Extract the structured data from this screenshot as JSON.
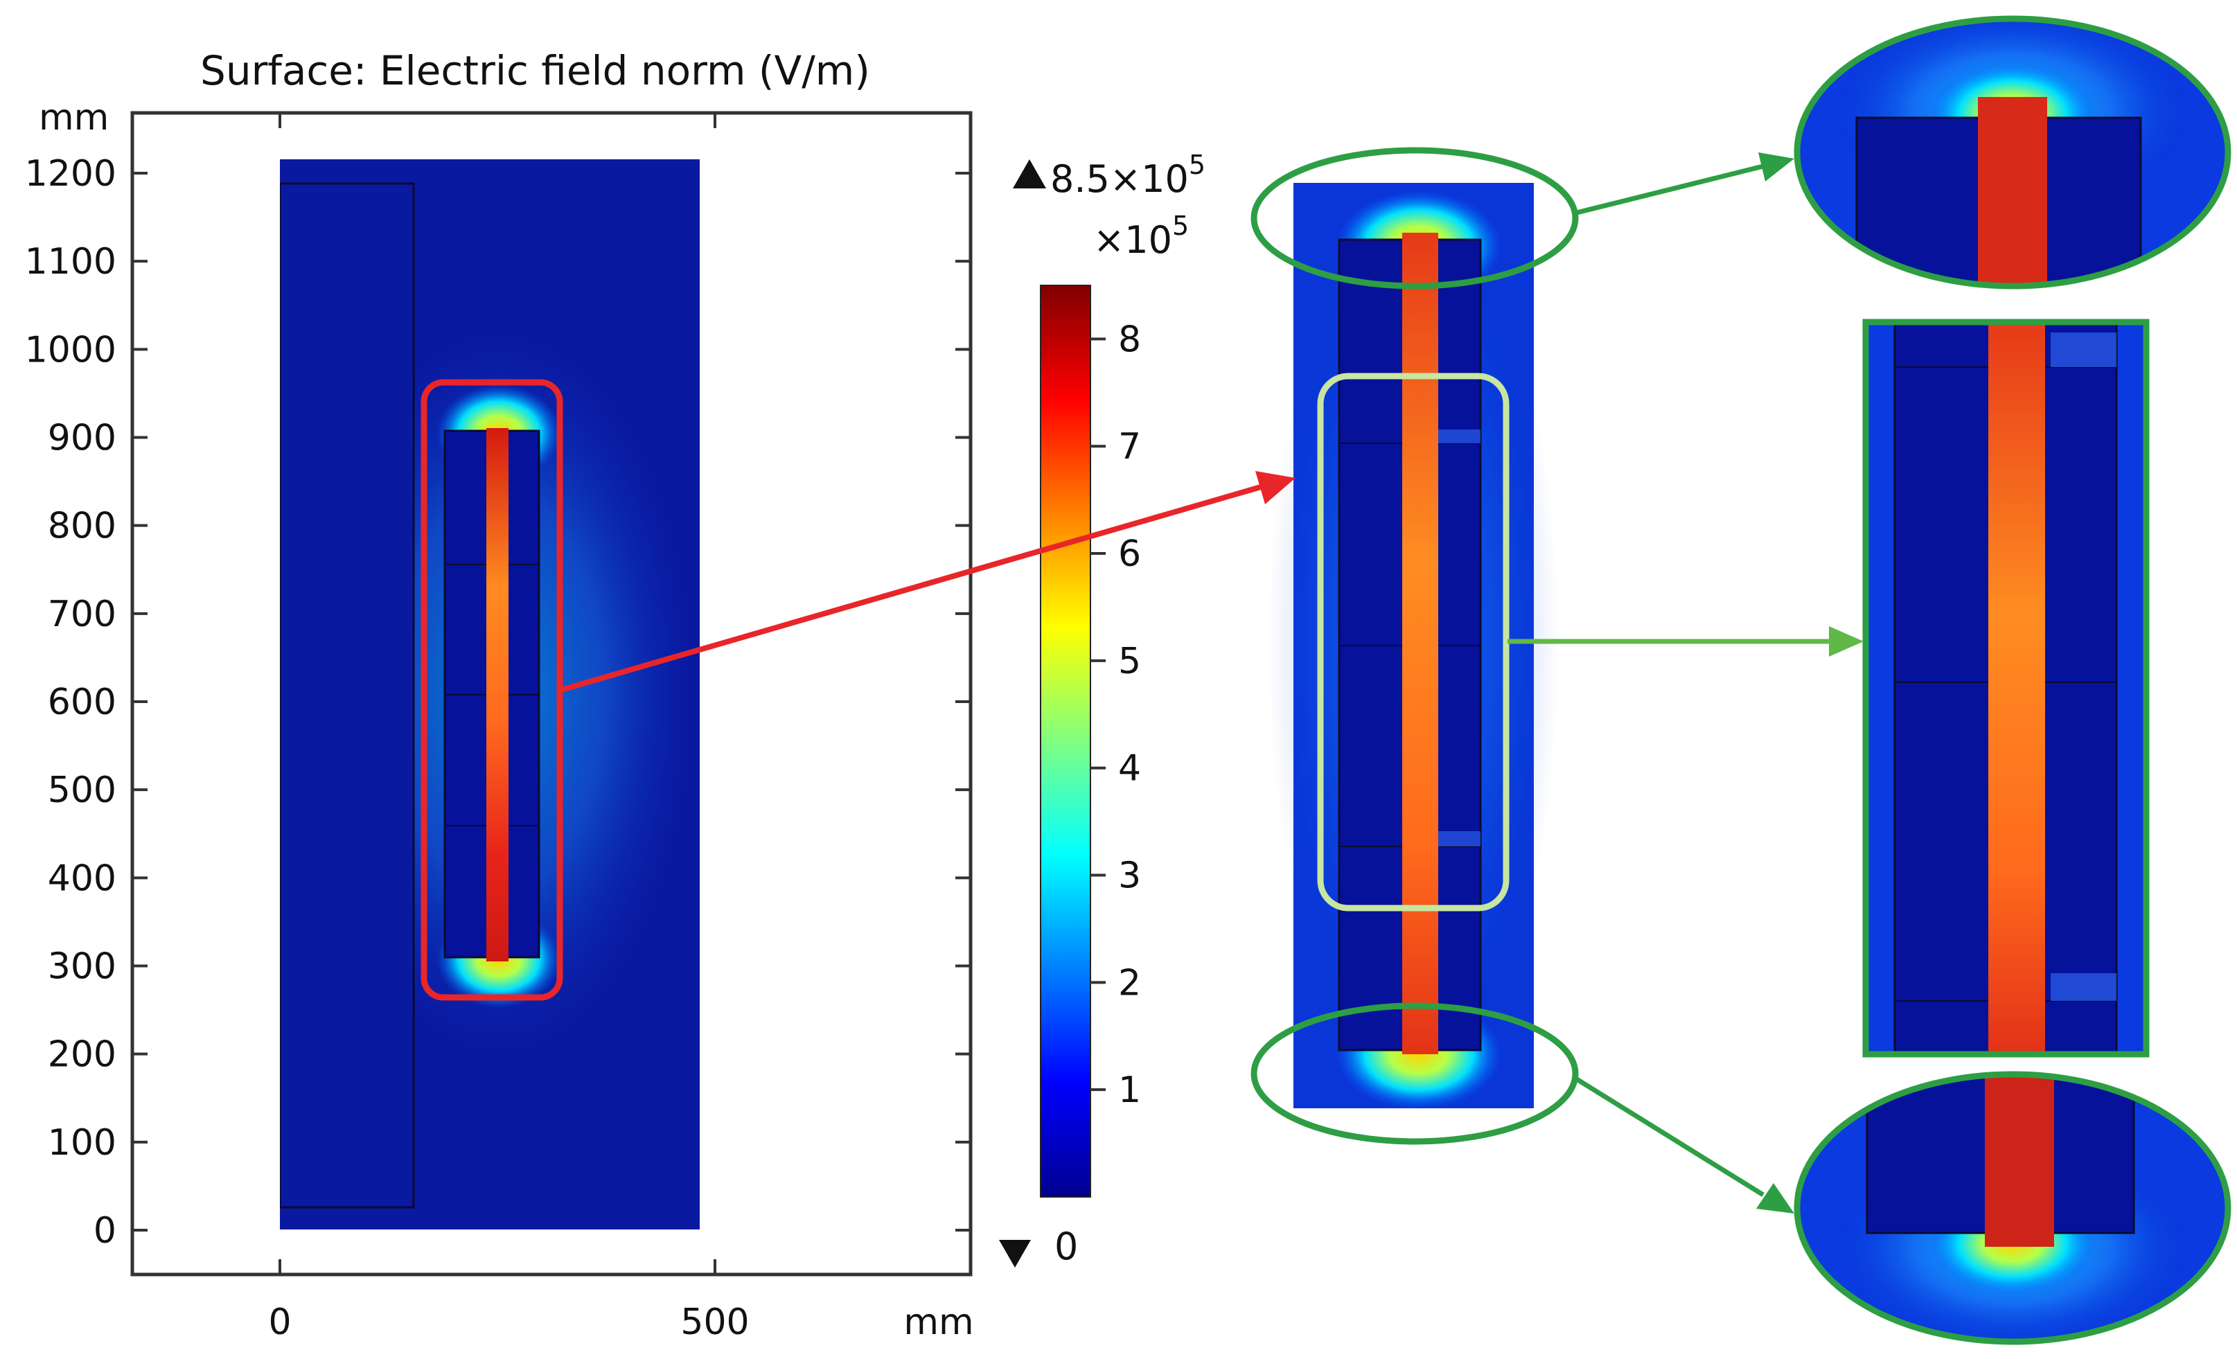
{
  "plot": {
    "title": "Surface: Electric field norm (V/m)",
    "y_unit": "mm",
    "x_unit": "mm",
    "y_ticks": [
      "1200",
      "1100",
      "1000",
      "900",
      "800",
      "700",
      "600",
      "500",
      "400",
      "300",
      "200",
      "100",
      "0"
    ],
    "x_ticks": [
      "0",
      "500"
    ]
  },
  "colorbar": {
    "max_label": "8.5×10",
    "max_exp": "5",
    "multiplier_label": "×10",
    "multiplier_exp": "5",
    "min_label": "0",
    "ticks": [
      "8",
      "7",
      "6",
      "5",
      "4",
      "3",
      "2",
      "1"
    ],
    "colors": [
      "#00008f",
      "#0000ff",
      "#0080ff",
      "#00ffff",
      "#80ff80",
      "#ffff00",
      "#ff8000",
      "#ff0000",
      "#800000"
    ]
  },
  "annotation_colors": {
    "red_box": "#e8262a",
    "light_green_box": "#c8e6a0",
    "green_ellipse": "#2e9e44",
    "arrow_green": "#5fb847"
  }
}
